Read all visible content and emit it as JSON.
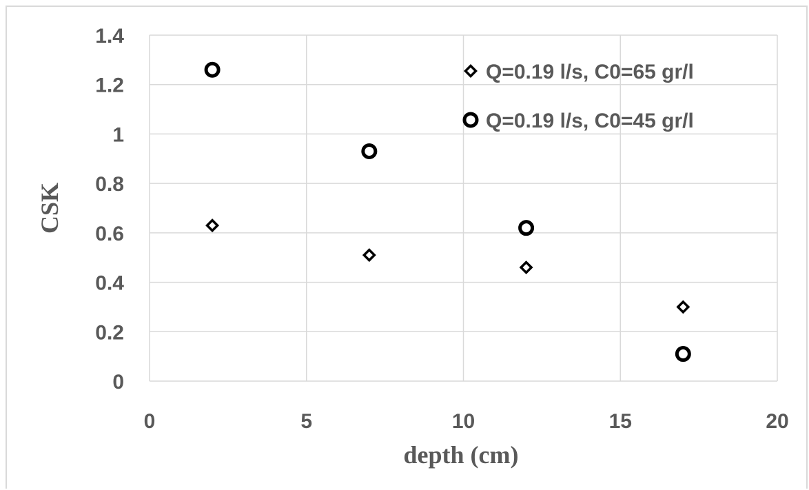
{
  "chart_data": {
    "type": "scatter",
    "title": "",
    "xlabel": "depth (cm)",
    "ylabel": "CSK",
    "xlim": [
      0,
      20
    ],
    "ylim": [
      0,
      1.4
    ],
    "x_ticks": [
      "0",
      "5",
      "10",
      "15",
      "20"
    ],
    "y_ticks": [
      "0",
      "0.2",
      "0.4",
      "0.6",
      "0.8",
      "1",
      "1.2",
      "1.4"
    ],
    "grid": true,
    "legend_position": "top-right",
    "series": [
      {
        "name": "Q=0.19 l/s, C0=65 gr/l",
        "marker": "diamond",
        "color": "#000000",
        "x": [
          2,
          7,
          12,
          17
        ],
        "y": [
          0.63,
          0.51,
          0.46,
          0.3
        ]
      },
      {
        "name": "Q=0.19 l/s, C0=45 gr/l",
        "marker": "circle",
        "color": "#000000",
        "x": [
          2,
          7,
          12,
          17
        ],
        "y": [
          1.26,
          0.93,
          0.62,
          0.11
        ]
      }
    ]
  }
}
